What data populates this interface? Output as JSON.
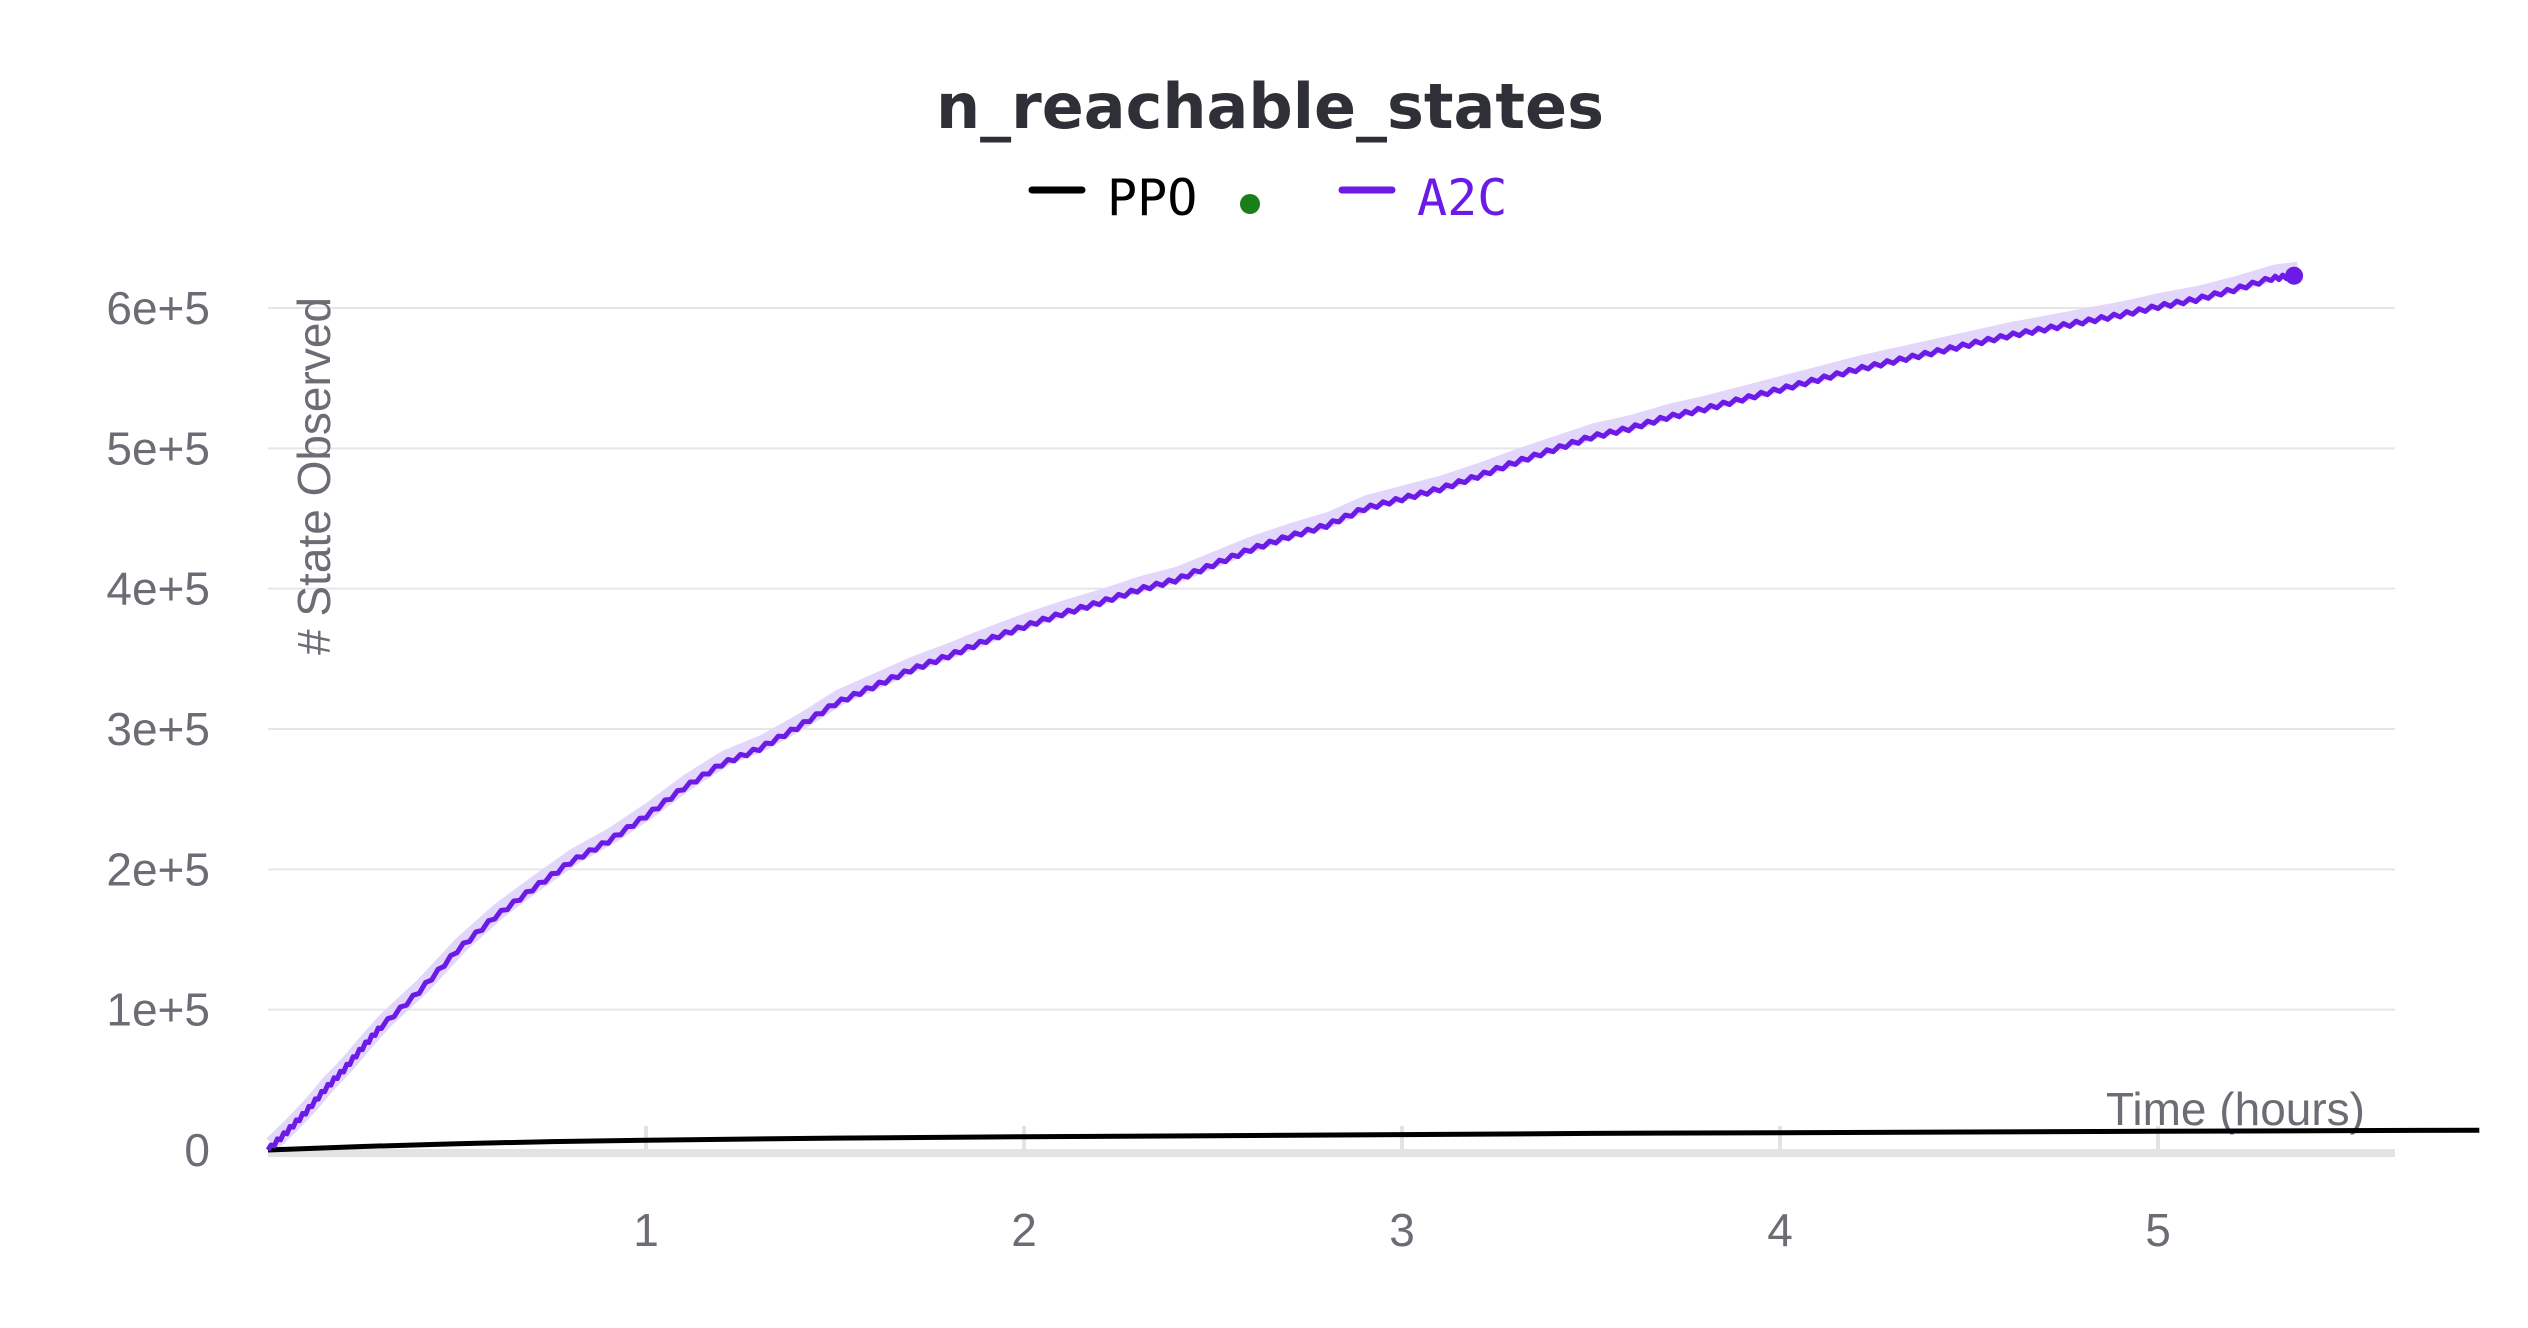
{
  "chart_data": {
    "type": "line",
    "title": "n_reachable_states",
    "xlabel": "Time (hours)",
    "ylabel": "# State Observed",
    "xlim": [
      0,
      5.65
    ],
    "ylim": [
      0,
      600000
    ],
    "x_ticks": [
      "1",
      "2",
      "3",
      "4",
      "5"
    ],
    "y_ticks": [
      "0",
      "1e+5",
      "2e+5",
      "3e+5",
      "4e+5",
      "5e+5",
      "6e+5"
    ],
    "grid": "horizontal",
    "legend": "top-center",
    "legend_marker_color": "#1a7f1a",
    "series": [
      {
        "name": "PPO",
        "color": "#000000",
        "x": [
          0,
          0.25,
          0.5,
          0.75,
          1.0,
          1.5,
          2.0,
          2.5,
          3.0,
          3.5,
          4.0,
          4.5,
          5.0,
          5.5,
          5.85
        ],
        "y": [
          0,
          2500,
          4500,
          6000,
          7000,
          8500,
          9500,
          10200,
          11000,
          11800,
          12300,
          12800,
          13300,
          13800,
          14100
        ]
      },
      {
        "name": "A2C",
        "color": "#6c1ae6",
        "x": [
          0,
          0.05,
          0.1,
          0.15,
          0.2,
          0.25,
          0.3,
          0.4,
          0.5,
          0.6,
          0.7,
          0.8,
          0.9,
          1.0,
          1.1,
          1.2,
          1.3,
          1.4,
          1.5,
          1.6,
          1.7,
          1.8,
          1.9,
          2.0,
          2.1,
          2.2,
          2.3,
          2.4,
          2.5,
          2.6,
          2.7,
          2.8,
          2.9,
          3.0,
          3.1,
          3.2,
          3.3,
          3.4,
          3.5,
          3.6,
          3.7,
          3.8,
          3.9,
          4.0,
          4.1,
          4.2,
          4.3,
          4.4,
          4.5,
          4.6,
          4.7,
          4.8,
          4.9,
          5.0,
          5.1,
          5.2,
          5.3,
          5.36
        ],
        "y": [
          0,
          13000,
          27000,
          43000,
          57000,
          73000,
          88000,
          113000,
          142000,
          166000,
          186000,
          205000,
          220000,
          238000,
          258000,
          275000,
          286000,
          301000,
          318000,
          330000,
          342000,
          352000,
          363000,
          373000,
          382000,
          390000,
          399000,
          406000,
          417000,
          428000,
          437000,
          445000,
          457000,
          464000,
          471000,
          480000,
          490000,
          499000,
          508000,
          514000,
          522000,
          528000,
          535000,
          542000,
          549000,
          556000,
          562000,
          568000,
          574000,
          580000,
          585000,
          590000,
          595000,
          601000,
          606000,
          613000,
          621000,
          623000
        ]
      }
    ]
  }
}
